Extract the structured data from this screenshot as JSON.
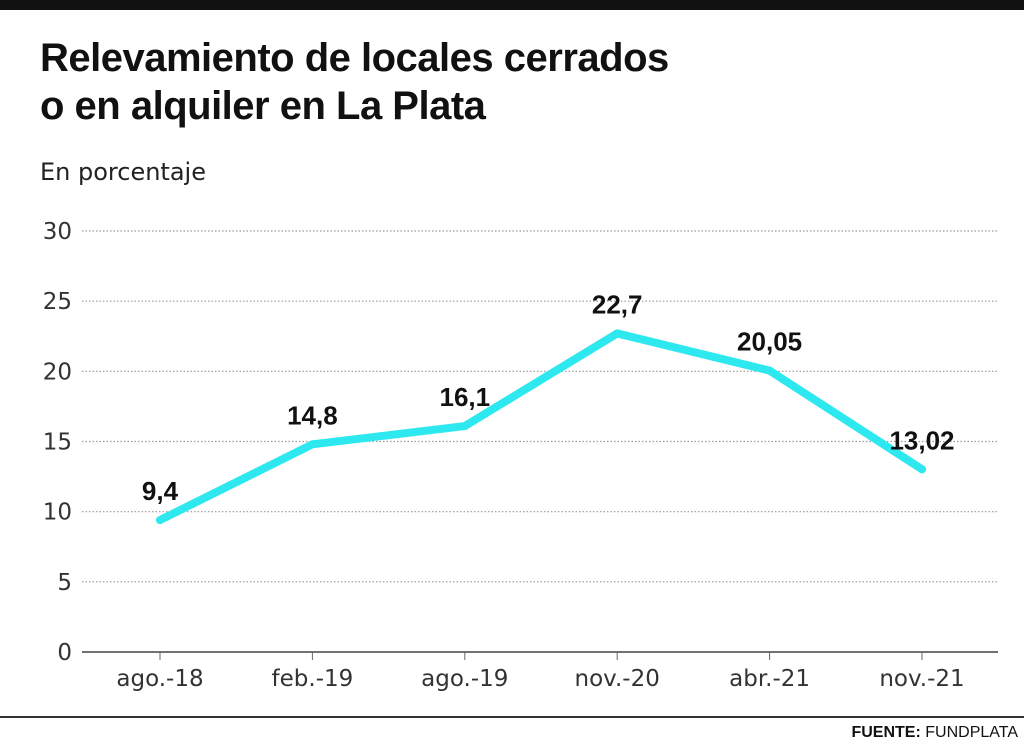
{
  "chart_data": {
    "type": "line",
    "title_lines": [
      "Relevamiento de locales cerrados",
      "o en alquiler en La Plata"
    ],
    "subtitle": "En porcentaje",
    "categories": [
      "ago.-18",
      "feb.-19",
      "ago.-19",
      "nov.-20",
      "abr.-21",
      "nov.-21"
    ],
    "values": [
      9.4,
      14.8,
      16.1,
      22.7,
      20.05,
      13.02
    ],
    "value_labels": [
      "9,4",
      "14,8",
      "16,1",
      "22,7",
      "20,05",
      "13,02"
    ],
    "y_ticks": [
      0,
      5,
      10,
      15,
      20,
      25,
      30
    ],
    "ylim": [
      0,
      30
    ],
    "grid": true,
    "line_color": "#2ee8f0"
  },
  "source": {
    "label": "FUENTE:",
    "name": "FUNDPLATA"
  }
}
